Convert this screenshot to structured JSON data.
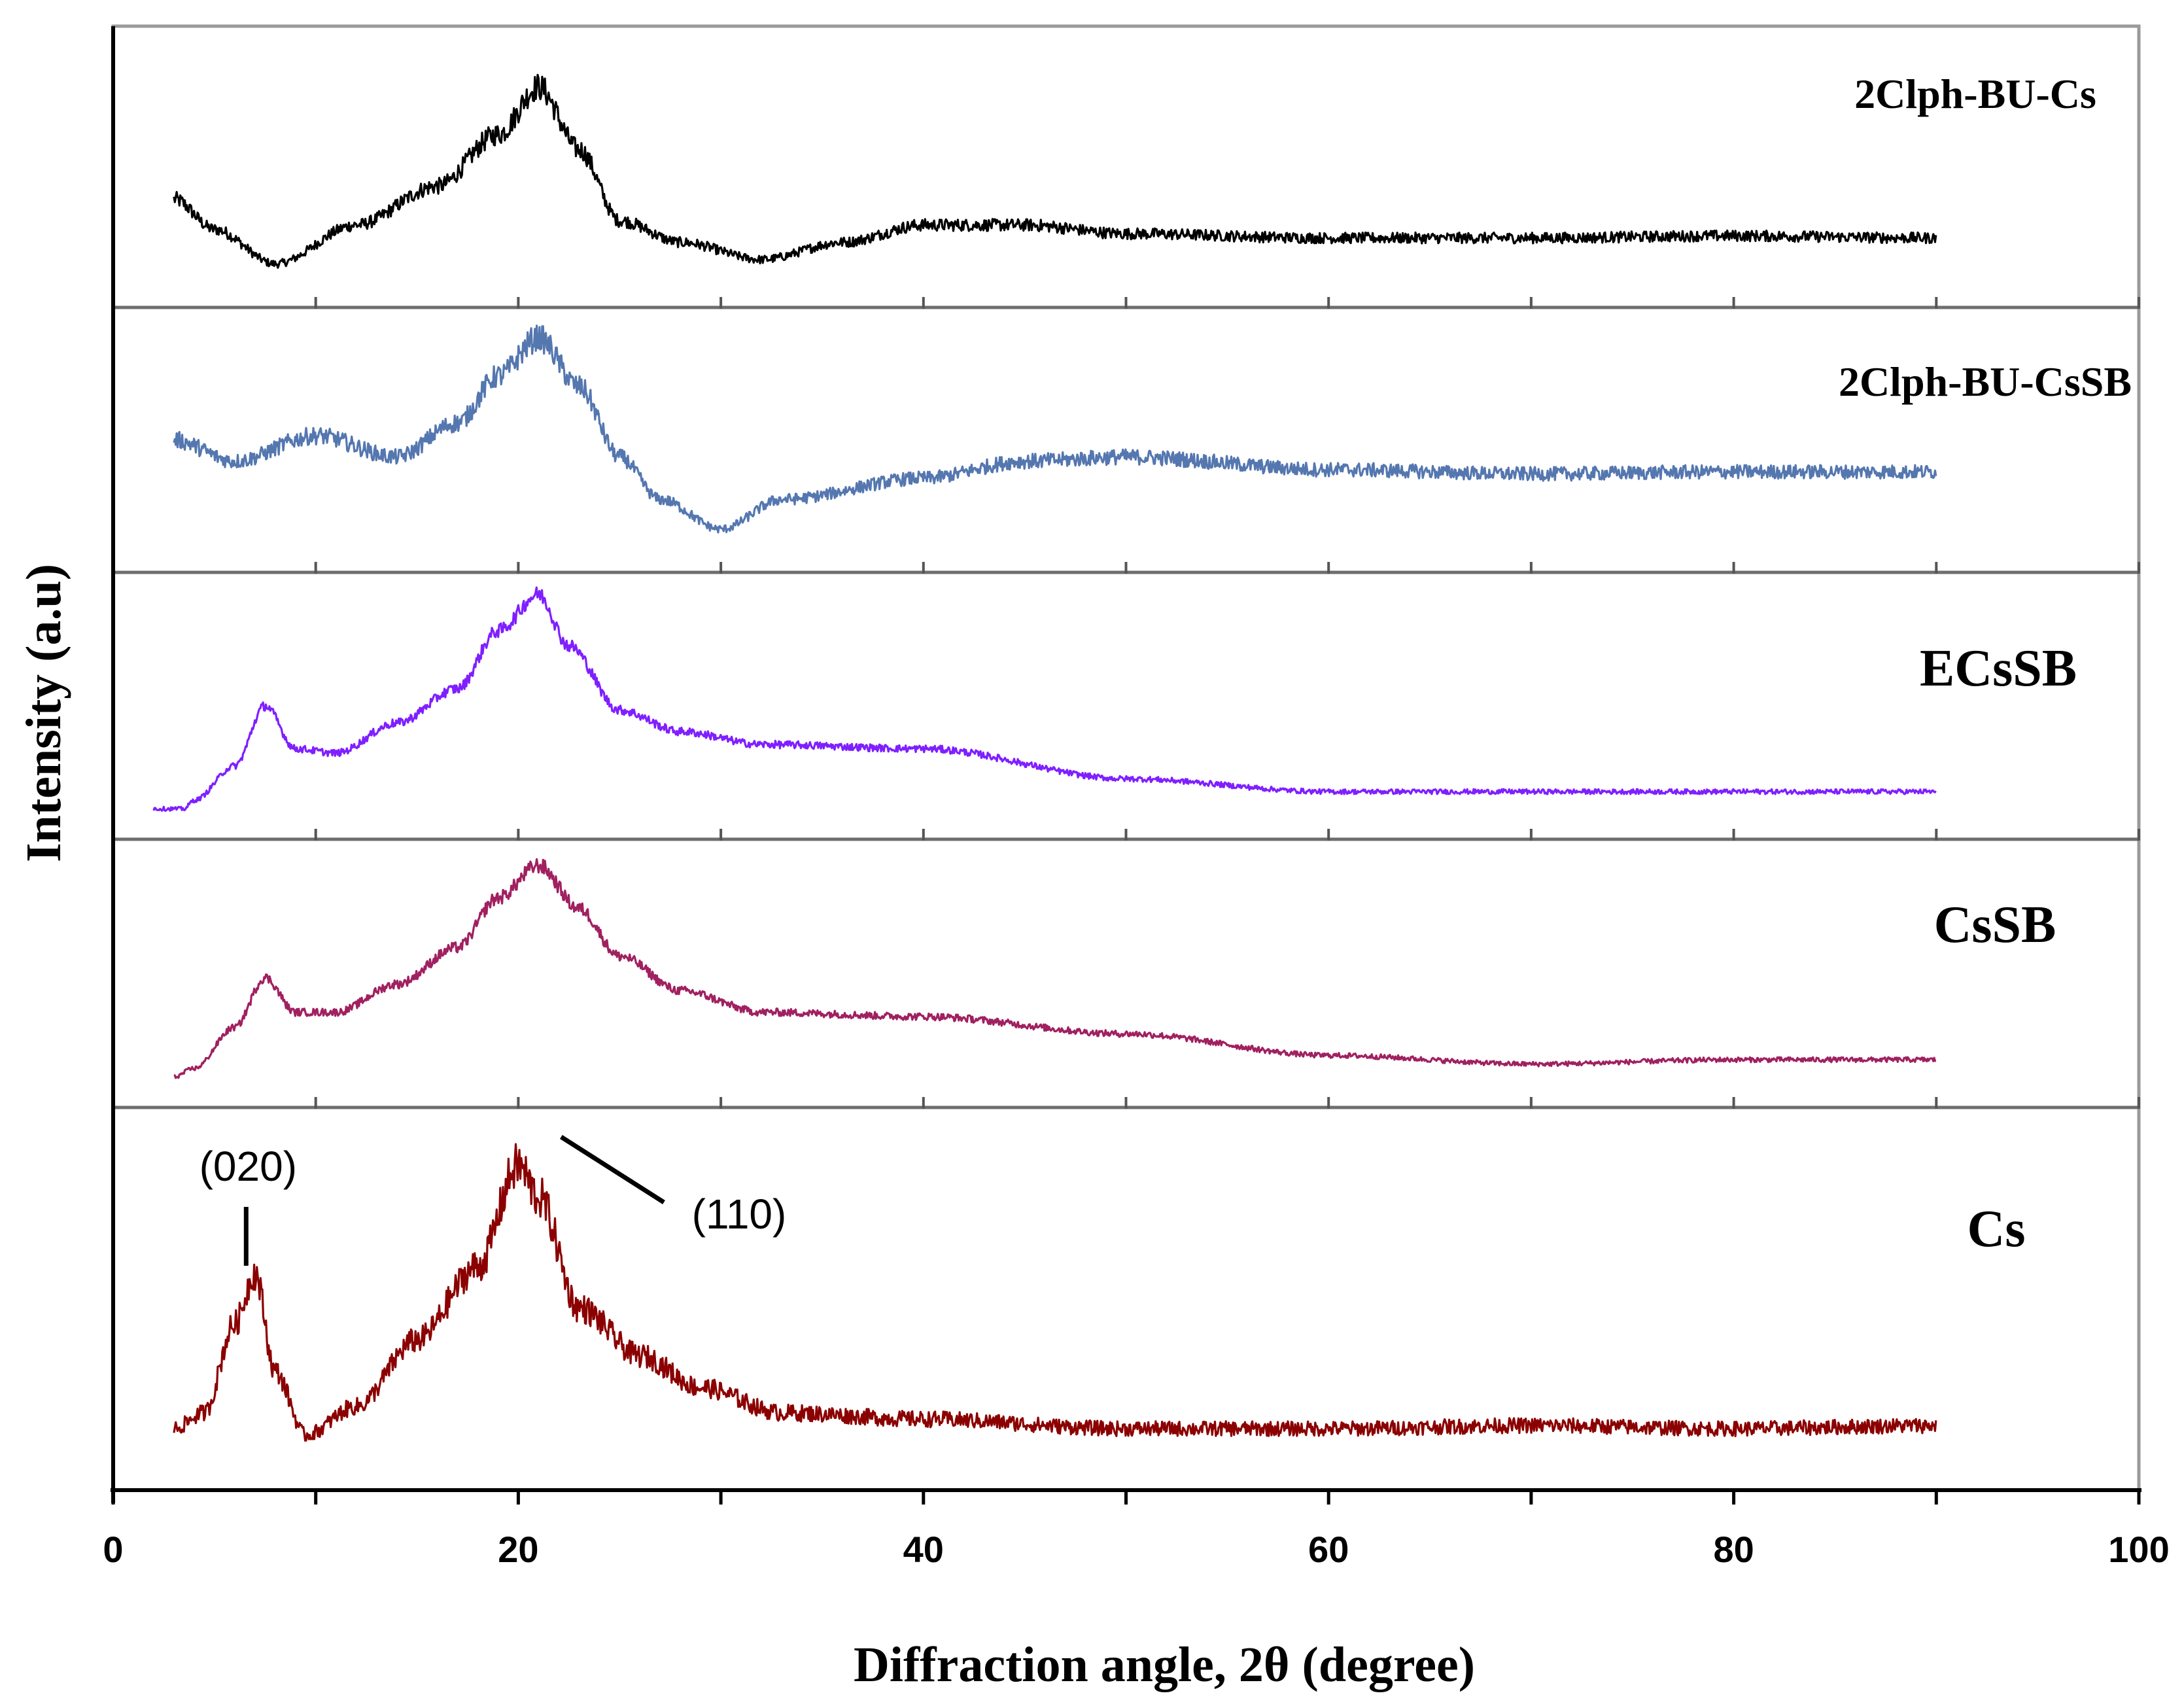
{
  "chart_data": {
    "type": "line",
    "title": "",
    "xlabel": "Diffraction angle, 2θ (degree)",
    "ylabel": "Intensity (a.u)",
    "xlim": [
      0,
      100
    ],
    "xticks": [
      "0",
      "20",
      "40",
      "60",
      "80",
      "100"
    ],
    "ylim": [
      0,
      1
    ],
    "grid": false,
    "layout": "stacked panels, top to bottom",
    "series": [
      {
        "name": "2Clph-BU-Cs",
        "color": "#000000",
        "x": [
          3,
          5,
          8,
          12,
          16,
          19,
          21,
          23,
          25,
          28,
          32,
          36,
          40,
          45,
          50,
          60,
          70,
          80,
          90
        ],
        "y": [
          0.32,
          0.18,
          0.02,
          0.2,
          0.38,
          0.62,
          0.84,
          0.55,
          0.22,
          0.12,
          0.04,
          0.12,
          0.2,
          0.2,
          0.16,
          0.14,
          0.14,
          0.15,
          0.14
        ]
      },
      {
        "name": "2Clph-BU-CsSB",
        "color": "#5577b0",
        "x": [
          3,
          6,
          10,
          14,
          17,
          19,
          21,
          23,
          25,
          27,
          30,
          33,
          40,
          45,
          50,
          60,
          70,
          80,
          90
        ],
        "y": [
          0.5,
          0.4,
          0.52,
          0.42,
          0.58,
          0.8,
          0.98,
          0.75,
          0.42,
          0.22,
          0.08,
          0.22,
          0.32,
          0.4,
          0.42,
          0.36,
          0.34,
          0.35,
          0.35
        ]
      },
      {
        "name": "ECsSB",
        "color": "#7f1fff",
        "x": [
          2,
          3.5,
          4,
          6,
          7.5,
          9,
          11,
          14,
          17,
          19,
          21,
          22.5,
          25,
          28,
          32,
          40,
          50,
          60,
          70,
          80,
          90
        ],
        "y": [
          0.02,
          0.02,
          0.06,
          0.22,
          0.5,
          0.3,
          0.28,
          0.42,
          0.58,
          0.85,
          1.02,
          0.78,
          0.48,
          0.38,
          0.32,
          0.3,
          0.16,
          0.1,
          0.1,
          0.1,
          0.1
        ]
      },
      {
        "name": "CsSB",
        "color": "#a02060",
        "x": [
          3,
          4,
          6,
          7.5,
          9,
          11,
          14,
          17,
          19,
          21,
          23,
          25,
          28,
          32,
          40,
          50,
          60,
          70,
          80,
          90
        ],
        "y": [
          0.02,
          0.06,
          0.25,
          0.48,
          0.32,
          0.32,
          0.45,
          0.62,
          0.85,
          1.0,
          0.8,
          0.58,
          0.42,
          0.32,
          0.3,
          0.22,
          0.12,
          0.08,
          0.1,
          0.1
        ]
      },
      {
        "name": "Cs",
        "color": "#8b0000",
        "x": [
          3,
          4.5,
          6,
          7,
          8,
          9.5,
          12,
          15,
          18,
          20,
          21,
          23,
          26,
          29,
          33,
          40,
          50,
          60,
          70,
          80,
          90
        ],
        "y": [
          0.07,
          0.12,
          0.4,
          0.56,
          0.25,
          0.05,
          0.14,
          0.35,
          0.58,
          0.9,
          0.8,
          0.45,
          0.3,
          0.2,
          0.12,
          0.1,
          0.07,
          0.07,
          0.08,
          0.07,
          0.08
        ]
      }
    ],
    "annotations": [
      {
        "text": "(020)",
        "x": 6.5
      },
      {
        "text": "(110)",
        "x": 20.5
      }
    ]
  }
}
